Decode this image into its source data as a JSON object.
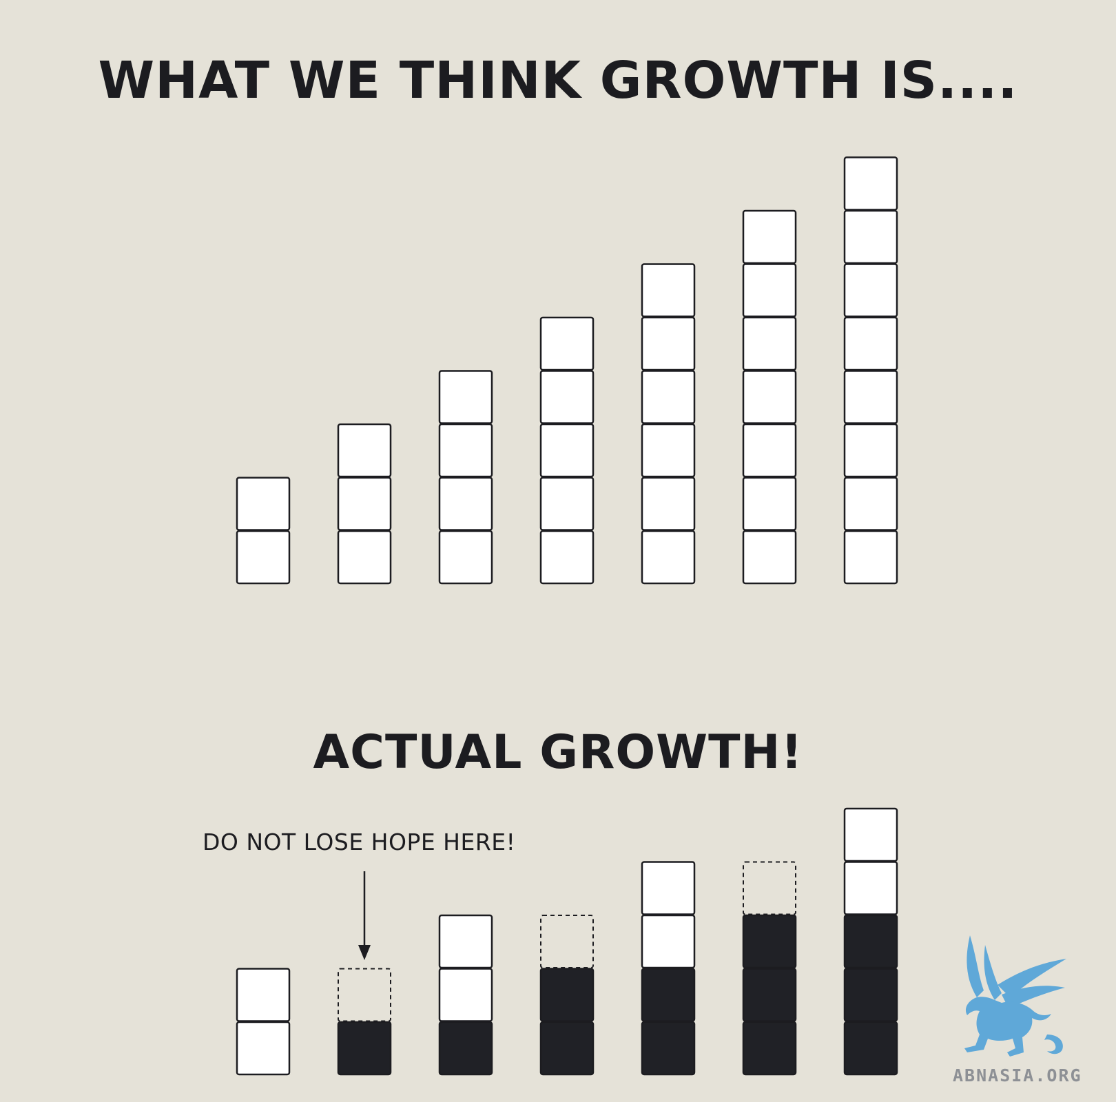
{
  "top_section": {
    "title": "WHAT WE THINK GROWTH IS....",
    "column_heights": [
      2,
      3,
      4,
      5,
      6,
      7,
      8
    ]
  },
  "bottom_section": {
    "title": "ACTUAL GROWTH!",
    "annotation": "DO NOT LOSE HOPE HERE!",
    "annotation_target_column": 2,
    "columns": [
      [
        "white",
        "white"
      ],
      [
        "black",
        "dashed"
      ],
      [
        "black",
        "white",
        "white"
      ],
      [
        "black",
        "black",
        "dashed"
      ],
      [
        "black",
        "black",
        "white",
        "white"
      ],
      [
        "black",
        "black",
        "black",
        "dashed"
      ],
      [
        "black",
        "black",
        "black",
        "white",
        "white"
      ]
    ]
  },
  "colors": {
    "background": "#e5e2d8",
    "outline": "#1c1c20",
    "white_block": "#ffffff",
    "filled_block": "#202126",
    "watermark": "#5fa8d8"
  },
  "watermark": {
    "text": "ABNASIA.ORG",
    "icon": "griffin-logo-icon"
  }
}
